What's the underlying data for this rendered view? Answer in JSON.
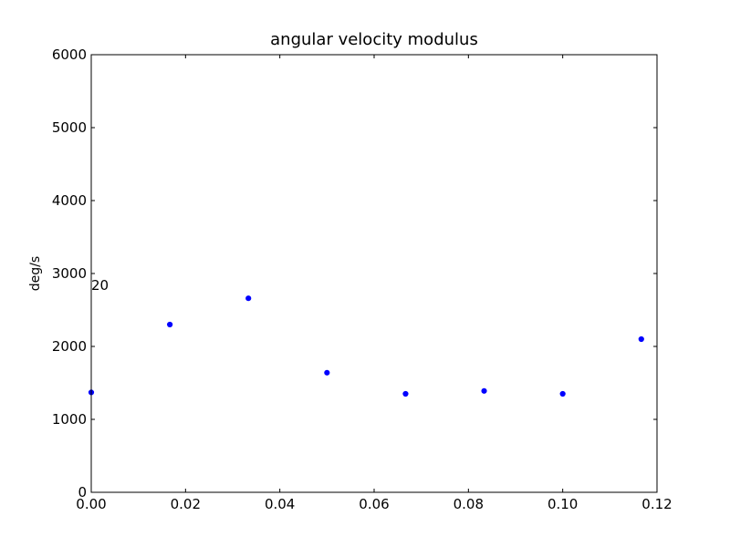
{
  "chart_data": {
    "type": "scatter",
    "title": "angular velocity modulus",
    "xlabel": "",
    "ylabel": "deg/s",
    "xlim": [
      0.0,
      0.12
    ],
    "ylim": [
      0,
      6000
    ],
    "xticks": [
      0.0,
      0.02,
      0.04,
      0.06,
      0.08,
      0.1,
      0.12
    ],
    "xtick_labels": [
      "0.00",
      "0.02",
      "0.04",
      "0.06",
      "0.08",
      "0.10",
      "0.12"
    ],
    "yticks": [
      0,
      1000,
      2000,
      3000,
      4000,
      5000,
      6000
    ],
    "ytick_labels": [
      "0",
      "1000",
      "2000",
      "3000",
      "4000",
      "5000",
      "6000"
    ],
    "grid": false,
    "marker_color": "#0000ff",
    "series": [
      {
        "x": [
          0.0,
          0.01667,
          0.03333,
          0.05,
          0.06667,
          0.08333,
          0.1,
          0.11667
        ],
        "y": [
          1370,
          2300,
          2660,
          1640,
          1350,
          1390,
          1350,
          2100
        ]
      }
    ],
    "annotations": [
      {
        "text": "20",
        "x": 0.0,
        "y": 2850
      }
    ]
  }
}
